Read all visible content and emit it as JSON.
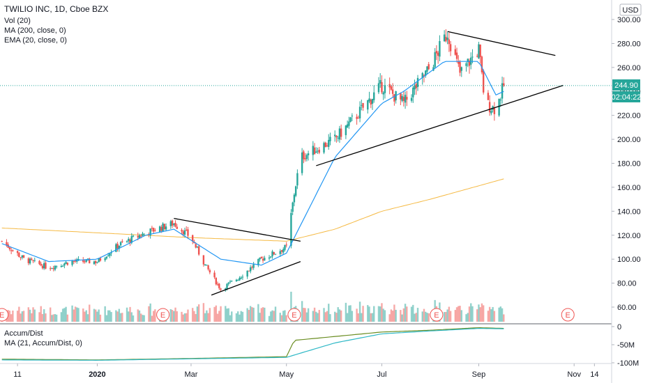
{
  "header": {
    "symbol_line": "TWILIO INC, 1D, Cboe BZX",
    "volume_study": "Vol (20)",
    "ma_study": "MA (200, close, 0)",
    "ema_study": "EMA (20, close, 0)",
    "currency_button": "USD"
  },
  "price_tags": {
    "last_price": "244.90",
    "countdown": "02:04:22"
  },
  "sub_pane": {
    "title": "Accum/Dist",
    "ma_study": "MA (21, Accum/Dist, 0)"
  },
  "earnings_marker": "E",
  "colors": {
    "up": "#26a69a",
    "down": "#ef5350",
    "ema": "#2196f3",
    "ma200": "#f5b942",
    "trendline": "#000000",
    "price_line": "#26a69a",
    "accdist": "#6b8e23",
    "accdist_ma": "#2eb8c6"
  },
  "chart_data": [
    {
      "type": "candlestick",
      "price_axis": {
        "ylim": [
          50,
          305
        ],
        "ticks": [
          "300.00",
          "280.00",
          "260.00",
          "240.00",
          "220.00",
          "200.00",
          "180.00",
          "160.00",
          "140.00",
          "120.00",
          "100.00",
          "80.00",
          "60.00"
        ]
      },
      "time_axis": {
        "ticks": [
          "11",
          "2020",
          "Mar",
          "May",
          "Jul",
          "Sep",
          "Nov",
          "14"
        ]
      },
      "date_range": [
        "2019-11-01",
        "2020-09-17"
      ],
      "approx_price_path": [
        [
          "2019-11-01",
          115
        ],
        [
          "2019-11-15",
          100
        ],
        [
          "2019-12-01",
          93
        ],
        [
          "2019-12-15",
          98
        ],
        [
          "2020-01-01",
          98
        ],
        [
          "2020-01-15",
          112
        ],
        [
          "2020-02-01",
          122
        ],
        [
          "2020-02-19",
          130
        ],
        [
          "2020-03-01",
          118
        ],
        [
          "2020-03-10",
          95
        ],
        [
          "2020-03-20",
          75
        ],
        [
          "2020-04-01",
          85
        ],
        [
          "2020-04-15",
          100
        ],
        [
          "2020-05-01",
          110
        ],
        [
          "2020-05-06",
          155
        ],
        [
          "2020-05-10",
          185
        ],
        [
          "2020-06-01",
          200
        ],
        [
          "2020-06-15",
          220
        ],
        [
          "2020-07-01",
          245
        ],
        [
          "2020-07-15",
          230
        ],
        [
          "2020-08-01",
          260
        ],
        [
          "2020-08-12",
          289
        ],
        [
          "2020-08-20",
          255
        ],
        [
          "2020-09-01",
          275
        ],
        [
          "2020-09-05",
          230
        ],
        [
          "2020-09-12",
          225
        ],
        [
          "2020-09-17",
          244.9
        ]
      ],
      "last_price": 244.9,
      "ema20_approx": [
        [
          "2019-11-01",
          113
        ],
        [
          "2019-12-01",
          98
        ],
        [
          "2020-01-01",
          100
        ],
        [
          "2020-02-01",
          120
        ],
        [
          "2020-02-19",
          125
        ],
        [
          "2020-03-20",
          100
        ],
        [
          "2020-04-15",
          95
        ],
        [
          "2020-05-01",
          105
        ],
        [
          "2020-06-01",
          185
        ],
        [
          "2020-07-01",
          230
        ],
        [
          "2020-07-15",
          240
        ],
        [
          "2020-08-10",
          265
        ],
        [
          "2020-09-01",
          265
        ],
        [
          "2020-09-12",
          237
        ],
        [
          "2020-09-17",
          240
        ]
      ],
      "ma200_approx": [
        [
          "2019-11-01",
          126
        ],
        [
          "2020-01-01",
          122
        ],
        [
          "2020-03-01",
          118
        ],
        [
          "2020-05-01",
          115
        ],
        [
          "2020-06-01",
          125
        ],
        [
          "2020-07-01",
          140
        ],
        [
          "2020-08-01",
          150
        ],
        [
          "2020-09-17",
          167
        ]
      ],
      "trendlines": [
        {
          "name": "",
          "from": [
            "2020-02-19",
            134
          ],
          "to": [
            "2020-05-10",
            115
          ]
        },
        {
          "name": "",
          "from": [
            "2020-03-14",
            70
          ],
          "to": [
            "2020-05-10",
            98
          ]
        },
        {
          "name": "",
          "from": [
            "2020-08-12",
            290
          ],
          "to": [
            "2020-10-20",
            270
          ]
        },
        {
          "name": "",
          "from": [
            "2020-05-20",
            178
          ],
          "to": [
            "2020-10-25",
            245
          ]
        }
      ],
      "earnings_dates": [
        "2019-11-01",
        "2020-02-12",
        "2020-05-06",
        "2020-08-05",
        "2020-10-28"
      ],
      "grid": false
    },
    {
      "type": "line",
      "title": "Accum/Dist",
      "y_ticks": [
        "0",
        "-50M",
        "-100M"
      ],
      "ylim": [
        -110,
        10
      ],
      "series": [
        {
          "name": "Accum/Dist",
          "points": [
            [
              "2019-11-01",
              -90
            ],
            [
              "2020-01-01",
              -92
            ],
            [
              "2020-03-01",
              -88
            ],
            [
              "2020-05-01",
              -83
            ],
            [
              "2020-05-06",
              -38
            ],
            [
              "2020-07-01",
              -15
            ],
            [
              "2020-08-01",
              -10
            ],
            [
              "2020-09-01",
              -3
            ],
            [
              "2020-09-17",
              -5
            ]
          ]
        },
        {
          "name": "MA (21, Accum/Dist, 0)",
          "points": [
            [
              "2019-11-01",
              -92
            ],
            [
              "2020-01-01",
              -93
            ],
            [
              "2020-03-01",
              -89
            ],
            [
              "2020-05-01",
              -85
            ],
            [
              "2020-06-01",
              -45
            ],
            [
              "2020-07-01",
              -20
            ],
            [
              "2020-08-01",
              -12
            ],
            [
              "2020-09-01",
              -5
            ],
            [
              "2020-09-17",
              -6
            ]
          ]
        }
      ]
    }
  ]
}
